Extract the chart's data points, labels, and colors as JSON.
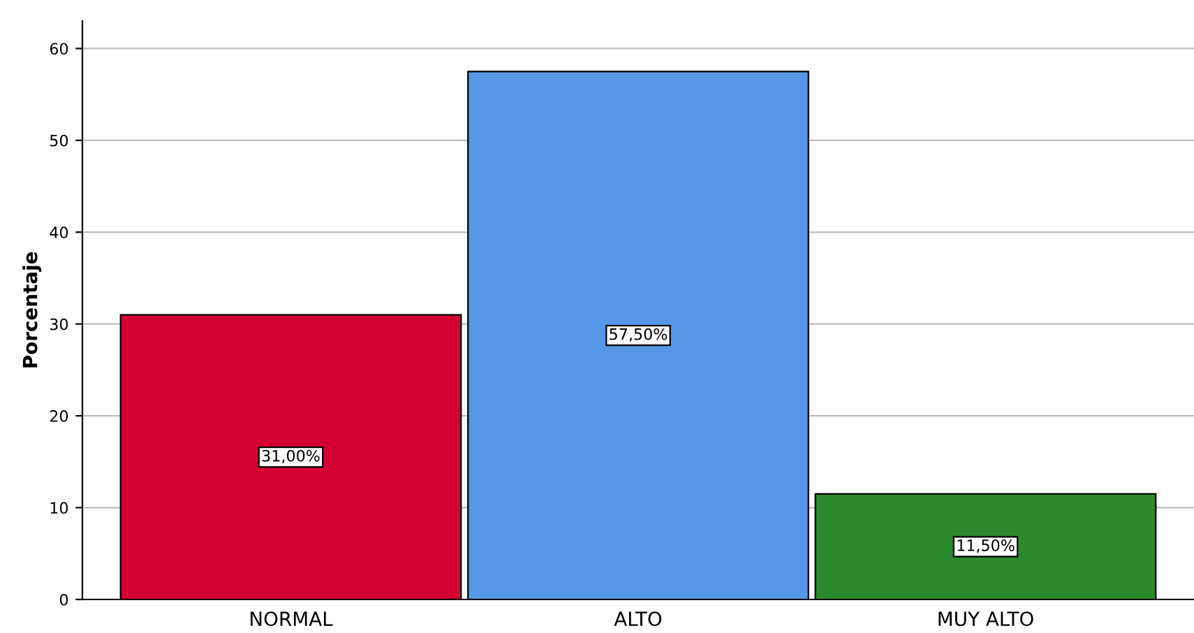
{
  "chart_data": {
    "type": "bar",
    "ylabel": "Porcentaje",
    "categories": [
      "NORMAL",
      "ALTO",
      "MUY ALTO"
    ],
    "values": [
      31.0,
      57.5,
      11.5
    ],
    "colors": [
      "#d50032",
      "#5597e6",
      "#2b8a2b"
    ],
    "value_labels": [
      "31,00%",
      "57,50%",
      "11,50%"
    ],
    "ylim": [
      0,
      63
    ],
    "yticks": [
      0,
      10,
      20,
      30,
      40,
      50,
      60
    ],
    "grid": "y"
  }
}
